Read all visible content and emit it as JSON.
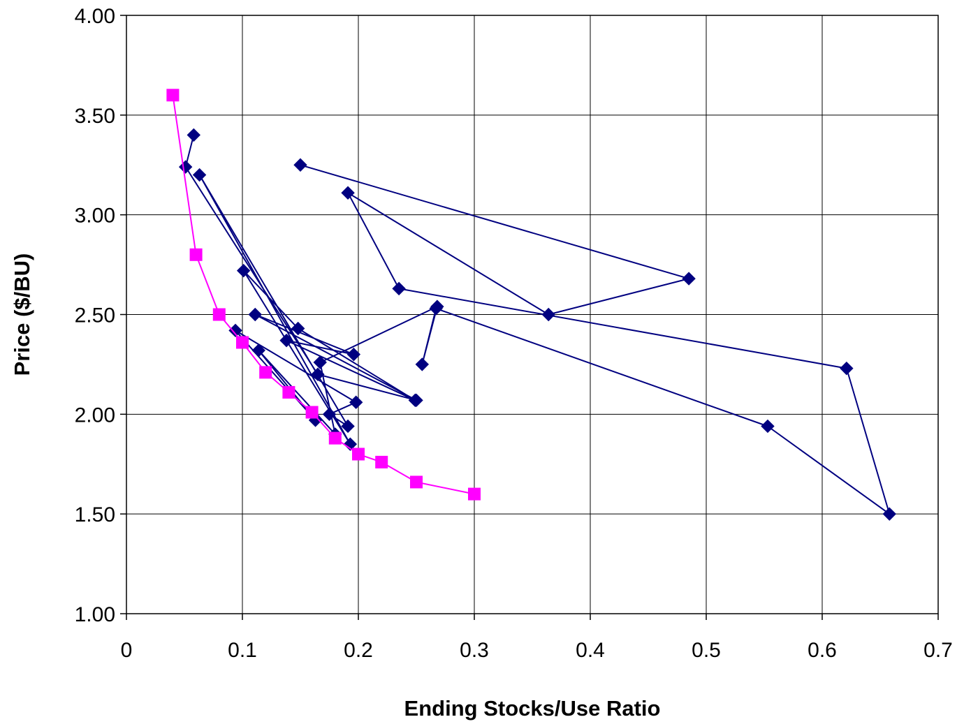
{
  "chart_data": {
    "type": "scatter",
    "title": "",
    "xlabel": "Ending Stocks/Use Ratio",
    "ylabel": "Price ($/BU)",
    "xlim": [
      0,
      0.7
    ],
    "ylim": [
      1.0,
      4.0
    ],
    "x_ticks": [
      "0",
      "0.1",
      "0.2",
      "0.3",
      "0.4",
      "0.5",
      "0.6",
      "0.7"
    ],
    "y_ticks": [
      "1.00",
      "1.50",
      "2.00",
      "2.50",
      "3.00",
      "3.50",
      "4.00"
    ],
    "grid": true,
    "legend": "none",
    "series": [
      {
        "color": "#000080",
        "marker": "diamond",
        "line": true,
        "points": [
          {
            "x": 0.058,
            "y": 3.4
          },
          {
            "x": 0.051,
            "y": 3.24
          },
          {
            "x": 0.165,
            "y": 2.2
          },
          {
            "x": 0.25,
            "y": 2.07
          },
          {
            "x": 0.111,
            "y": 2.5
          },
          {
            "x": 0.196,
            "y": 2.3
          },
          {
            "x": 0.138,
            "y": 2.37
          },
          {
            "x": 0.249,
            "y": 2.07
          },
          {
            "x": 0.148,
            "y": 2.43
          },
          {
            "x": 0.101,
            "y": 2.72
          },
          {
            "x": 0.193,
            "y": 1.85
          },
          {
            "x": 0.063,
            "y": 3.2
          },
          {
            "x": 0.191,
            "y": 1.94
          },
          {
            "x": 0.175,
            "y": 2.0
          },
          {
            "x": 0.198,
            "y": 2.06
          },
          {
            "x": 0.094,
            "y": 2.42
          },
          {
            "x": 0.163,
            "y": 1.97
          },
          {
            "x": 0.114,
            "y": 2.32
          },
          {
            "x": 0.18,
            "y": 1.9
          },
          {
            "x": 0.167,
            "y": 2.26
          },
          {
            "x": 0.268,
            "y": 2.54
          },
          {
            "x": 0.255,
            "y": 2.25
          },
          {
            "x": 0.267,
            "y": 2.53
          },
          {
            "x": 0.553,
            "y": 1.94
          },
          {
            "x": 0.658,
            "y": 1.5
          },
          {
            "x": 0.621,
            "y": 2.23
          },
          {
            "x": 0.235,
            "y": 2.63
          },
          {
            "x": 0.191,
            "y": 3.11
          },
          {
            "x": 0.364,
            "y": 2.5
          },
          {
            "x": 0.485,
            "y": 2.68
          },
          {
            "x": 0.15,
            "y": 3.25
          }
        ]
      },
      {
        "color": "#FF00FF",
        "marker": "square",
        "line": true,
        "points": [
          {
            "x": 0.04,
            "y": 3.6
          },
          {
            "x": 0.06,
            "y": 2.8
          },
          {
            "x": 0.08,
            "y": 2.5
          },
          {
            "x": 0.1,
            "y": 2.36
          },
          {
            "x": 0.12,
            "y": 2.21
          },
          {
            "x": 0.14,
            "y": 2.11
          },
          {
            "x": 0.16,
            "y": 2.01
          },
          {
            "x": 0.18,
            "y": 1.88
          },
          {
            "x": 0.2,
            "y": 1.8
          },
          {
            "x": 0.22,
            "y": 1.76
          },
          {
            "x": 0.25,
            "y": 1.66
          },
          {
            "x": 0.3,
            "y": 1.6
          }
        ]
      }
    ]
  }
}
